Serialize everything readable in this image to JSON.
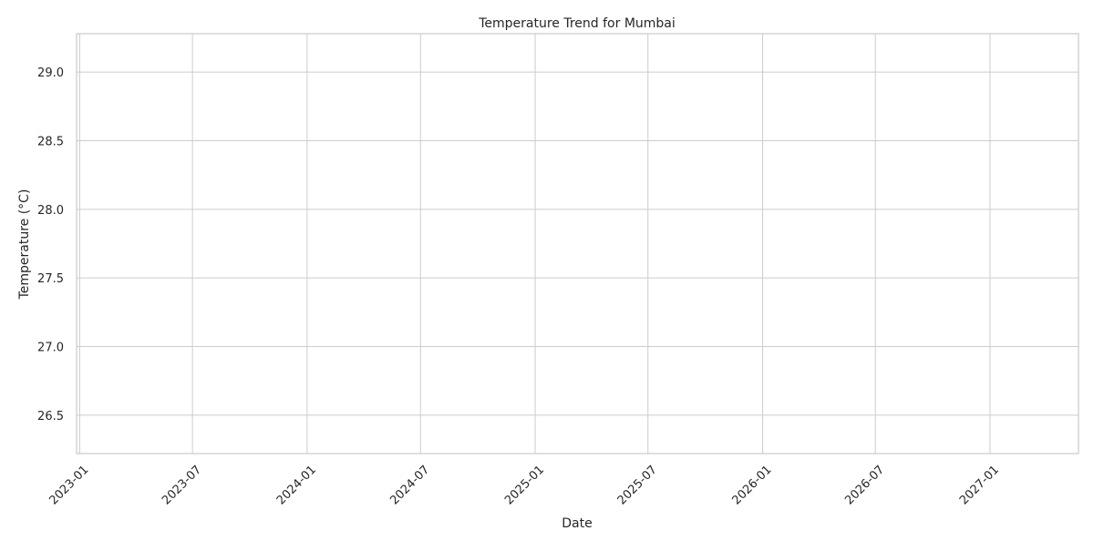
{
  "chart_data": {
    "type": "line",
    "title": "Temperature Trend for Mumbai",
    "xlabel": "Date",
    "ylabel": "Temperature (°C)",
    "x_scale": "date",
    "xlim": [
      "2022-12-27",
      "2027-05-23"
    ],
    "ylim": [
      26.22,
      29.28
    ],
    "x_ticks": [
      "2023-01",
      "2023-07",
      "2024-01",
      "2024-07",
      "2025-01",
      "2025-07",
      "2026-01",
      "2026-07",
      "2027-01"
    ],
    "y_ticks": [
      26.5,
      27.0,
      27.5,
      28.0,
      28.5,
      29.0
    ],
    "y_tick_labels": [
      "26.5",
      "27.0",
      "27.5",
      "28.0",
      "28.5",
      "29.0"
    ],
    "grid": true,
    "series": [
      {
        "x": [],
        "y": []
      }
    ]
  }
}
